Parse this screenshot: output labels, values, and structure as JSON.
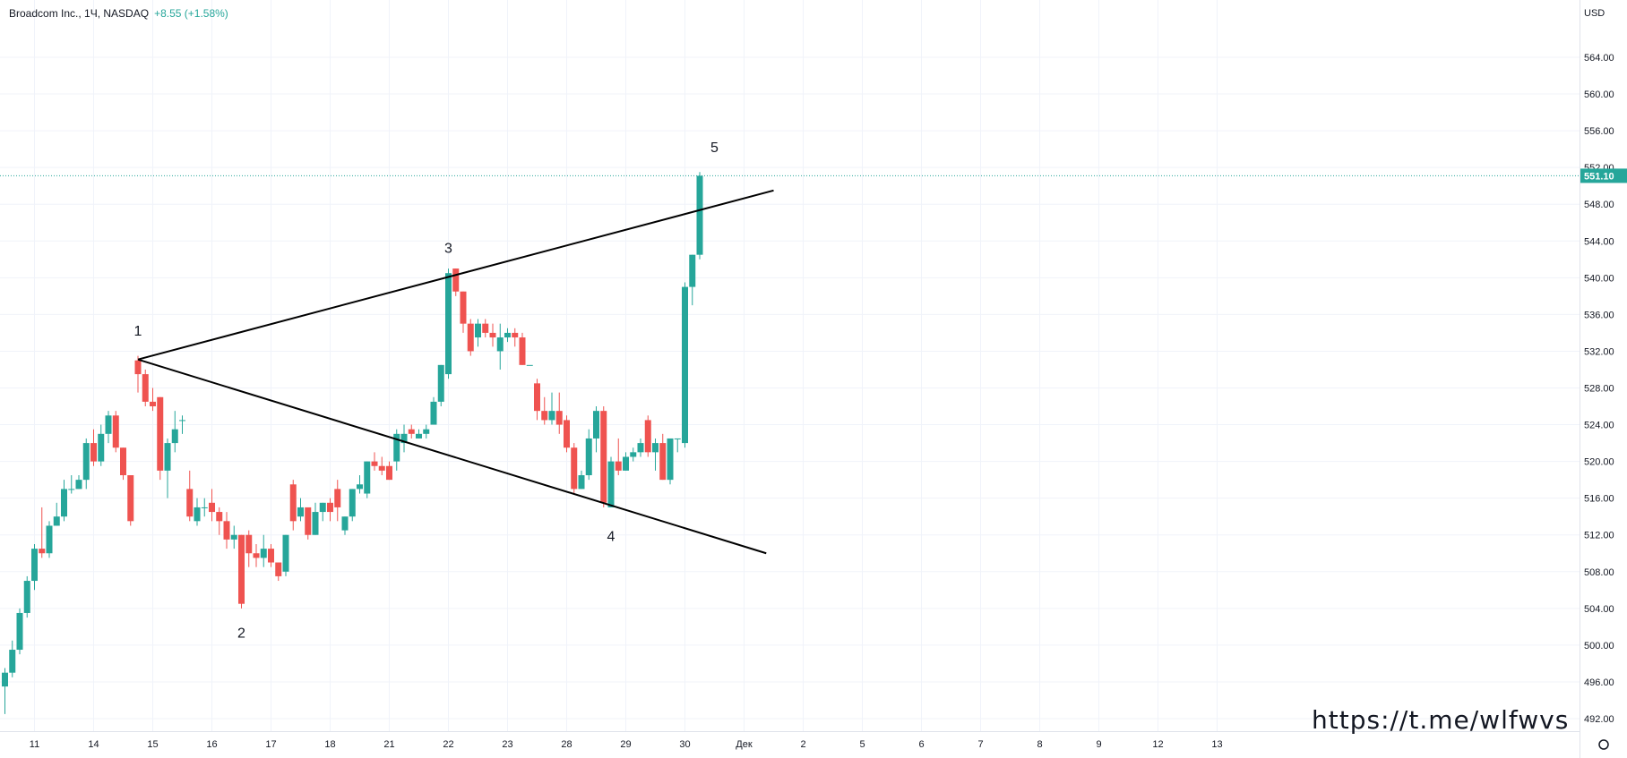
{
  "header": {
    "symbol_label": "Broadcom Inc., 1Ч, NASDAQ",
    "change_label": "+8.55 (+1.58%)"
  },
  "watermark": "https://t.me/wlfwvs",
  "colors": {
    "up": "#26a69a",
    "down": "#ef5350",
    "grid": "#f0f3fa",
    "axis_text": "#131722",
    "price_tag": "#26a69a",
    "lines": "#000000"
  },
  "chart_data": {
    "type": "candlestick",
    "currency": "USD",
    "ylim": [
      490,
      568
    ],
    "y_ticks": [
      "492.00",
      "496.00",
      "500.00",
      "504.00",
      "508.00",
      "512.00",
      "516.00",
      "520.00",
      "524.00",
      "528.00",
      "532.00",
      "536.00",
      "540.00",
      "544.00",
      "548.00",
      "552.00",
      "556.00",
      "560.00",
      "564.00"
    ],
    "last_price": "551.10",
    "x_ticks": [
      {
        "i": 4,
        "label": "11"
      },
      {
        "i": 12,
        "label": "14"
      },
      {
        "i": 20,
        "label": "15"
      },
      {
        "i": 28,
        "label": "16"
      },
      {
        "i": 36,
        "label": "17"
      },
      {
        "i": 44,
        "label": "18"
      },
      {
        "i": 52,
        "label": "21"
      },
      {
        "i": 60,
        "label": "22"
      },
      {
        "i": 68,
        "label": "23"
      },
      {
        "i": 76,
        "label": "28"
      },
      {
        "i": 84,
        "label": "29"
      },
      {
        "i": 92,
        "label": "30"
      },
      {
        "i": 100,
        "label": "Дек"
      },
      {
        "i": 108,
        "label": "2"
      },
      {
        "i": 116,
        "label": "5"
      },
      {
        "i": 124,
        "label": "6"
      },
      {
        "i": 132,
        "label": "7"
      },
      {
        "i": 140,
        "label": "8"
      },
      {
        "i": 148,
        "label": "9"
      },
      {
        "i": 156,
        "label": "12"
      },
      {
        "i": 164,
        "label": "13"
      }
    ],
    "candles": [
      [
        495.5,
        497,
        492.5,
        497.5
      ],
      [
        497,
        499.5,
        496.5,
        500.5
      ],
      [
        499.5,
        503.5,
        499,
        504
      ],
      [
        503.5,
        507,
        503,
        507.5
      ],
      [
        507,
        510.5,
        506,
        511
      ],
      [
        510.5,
        510,
        509.5,
        515
      ],
      [
        510,
        513,
        509.5,
        513.5
      ],
      [
        513,
        514,
        513,
        515.5
      ],
      [
        514,
        517,
        513.5,
        518
      ],
      [
        517,
        517,
        516.5,
        518.5
      ],
      [
        517,
        518,
        517,
        518.5
      ],
      [
        518,
        522,
        517,
        522.5
      ],
      [
        522,
        520,
        519.5,
        523.5
      ],
      [
        520,
        523,
        519.5,
        524
      ],
      [
        523,
        525,
        522,
        525.5
      ],
      [
        525,
        521.5,
        521,
        525.5
      ],
      [
        521.5,
        518.5,
        518,
        521.5
      ],
      [
        518.5,
        513.5,
        513,
        518.5
      ],
      [
        531,
        529.5,
        527.5,
        531.5
      ],
      [
        529.5,
        526.5,
        526,
        530
      ],
      [
        526.5,
        526,
        525.5,
        528
      ],
      [
        527,
        519,
        518,
        527
      ],
      [
        519,
        522,
        516,
        522.5
      ],
      [
        522,
        523.5,
        521,
        525.5
      ],
      [
        524.5,
        524.5,
        523,
        525
      ],
      [
        517,
        514,
        513.5,
        519
      ],
      [
        513.5,
        515,
        513,
        516
      ],
      [
        515,
        515,
        514,
        516
      ],
      [
        515.5,
        514.5,
        513.5,
        517
      ],
      [
        514.5,
        513.5,
        512,
        515
      ],
      [
        513.5,
        511.5,
        510.5,
        514.5
      ],
      [
        511.5,
        512,
        510.5,
        513
      ],
      [
        512,
        504.5,
        504,
        512
      ],
      [
        512,
        510,
        508.5,
        512.5
      ],
      [
        510,
        509.5,
        508.5,
        511
      ],
      [
        509.5,
        510.5,
        508.5,
        512
      ],
      [
        510.5,
        509,
        508.5,
        511
      ],
      [
        509,
        507.5,
        507,
        509
      ],
      [
        508,
        512,
        507.5,
        512
      ],
      [
        517.5,
        513.5,
        512.5,
        518
      ],
      [
        514,
        515,
        513.5,
        516
      ],
      [
        515,
        512,
        511.5,
        514.5
      ],
      [
        512,
        514.5,
        512,
        515.5
      ],
      [
        514.5,
        515.5,
        513.5,
        515.5
      ],
      [
        515.5,
        514.5,
        513.5,
        516
      ],
      [
        517,
        515,
        513.5,
        518
      ],
      [
        512.5,
        514,
        512,
        514
      ],
      [
        514,
        517,
        513.5,
        517
      ],
      [
        517,
        517.5,
        516.5,
        518.5
      ],
      [
        516.5,
        520,
        516,
        520
      ],
      [
        520,
        519.5,
        519,
        521
      ],
      [
        519.5,
        519,
        518.5,
        520.5
      ],
      [
        519.5,
        518,
        518,
        520
      ],
      [
        520,
        523,
        519,
        523.5
      ],
      [
        522,
        523,
        521,
        524
      ],
      [
        523.5,
        523,
        522.5,
        524
      ],
      [
        522.5,
        523,
        522.5,
        523.5
      ],
      [
        523,
        523.5,
        522.5,
        524
      ],
      [
        524,
        526.5,
        524,
        527
      ],
      [
        526.5,
        530.5,
        526,
        530.5
      ],
      [
        529.5,
        540.5,
        529,
        541
      ],
      [
        541,
        538.5,
        538,
        541
      ],
      [
        538.5,
        535,
        534,
        538.5
      ],
      [
        535,
        532,
        531.5,
        535.5
      ],
      [
        533.5,
        535,
        532.5,
        535.5
      ],
      [
        535,
        534,
        533.5,
        535.5
      ],
      [
        534,
        533.5,
        532.5,
        535
      ],
      [
        532,
        533.5,
        530,
        535
      ],
      [
        533.5,
        534,
        533,
        534.5
      ],
      [
        534,
        533.5,
        532.5,
        534.5
      ],
      [
        533.5,
        530.5,
        530.5,
        534
      ],
      [
        530.5,
        530.5,
        530.5,
        530.5
      ],
      [
        528.5,
        525.5,
        524.5,
        529
      ],
      [
        525.5,
        524.5,
        524,
        527
      ],
      [
        524.5,
        525.5,
        524,
        527.5
      ],
      [
        525.5,
        524,
        523,
        527.5
      ],
      [
        524.5,
        521.5,
        521,
        525
      ],
      [
        521.5,
        517,
        516.5,
        522
      ],
      [
        517,
        518.5,
        517,
        519
      ],
      [
        518.5,
        522.5,
        518,
        523.5
      ],
      [
        522.5,
        525.5,
        521,
        526
      ],
      [
        525.5,
        515.5,
        515,
        526
      ],
      [
        515,
        520,
        515,
        520.5
      ],
      [
        520,
        519,
        518.5,
        522.5
      ],
      [
        519,
        520.5,
        519,
        521
      ],
      [
        520.5,
        521,
        520,
        521.5
      ],
      [
        521,
        522,
        520.5,
        522.5
      ],
      [
        524.5,
        521,
        520.5,
        525
      ],
      [
        521,
        522,
        519,
        522.5
      ],
      [
        522,
        518,
        518,
        523
      ],
      [
        518,
        522.5,
        517.5,
        522.5
      ],
      [
        522.5,
        522.5,
        521,
        522.5
      ],
      [
        522,
        539,
        521.5,
        539.5
      ],
      [
        539,
        542.5,
        537,
        542.5
      ],
      [
        542.5,
        551.1,
        542,
        551.5
      ]
    ],
    "trendlines": [
      {
        "from": {
          "i": 18,
          "p": 531.1
        },
        "to": {
          "i": 104,
          "p": 549.5
        }
      },
      {
        "from": {
          "i": 18,
          "p": 531.1
        },
        "to": {
          "i": 103,
          "p": 510
        }
      }
    ],
    "wave_labels": [
      {
        "label": "1",
        "i": 18,
        "p": 533.5,
        "pos": "above"
      },
      {
        "label": "2",
        "i": 32,
        "p": 502.0,
        "pos": "below"
      },
      {
        "label": "3",
        "i": 60,
        "p": 542.5,
        "pos": "above"
      },
      {
        "label": "4",
        "i": 82,
        "p": 512.5,
        "pos": "below"
      },
      {
        "label": "5",
        "i": 96,
        "p": 553.5,
        "pos": "above"
      }
    ]
  }
}
